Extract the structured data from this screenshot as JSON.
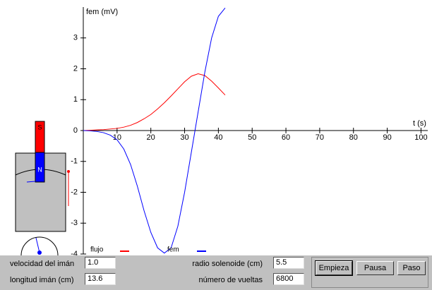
{
  "chart_data": {
    "type": "line",
    "y_label": "fem (mV)",
    "x_label": "t (s)",
    "x": [
      0,
      2,
      4,
      6,
      8,
      10,
      12,
      14,
      16,
      18,
      20,
      22,
      24,
      26,
      28,
      30,
      32,
      34,
      36,
      38,
      40,
      42
    ],
    "series": [
      {
        "name": "flujo",
        "color": "#ff0000",
        "values": [
          0,
          0.01,
          0.02,
          0.03,
          0.05,
          0.07,
          0.11,
          0.17,
          0.26,
          0.38,
          0.52,
          0.7,
          0.9,
          1.12,
          1.35,
          1.58,
          1.76,
          1.84,
          1.78,
          1.6,
          1.38,
          1.15
        ]
      },
      {
        "name": "fem",
        "color": "#0000ff",
        "values": [
          0,
          -0.01,
          -0.03,
          -0.07,
          -0.15,
          -0.3,
          -0.6,
          -1.1,
          -1.8,
          -2.6,
          -3.3,
          -3.8,
          -3.97,
          -3.8,
          -3.1,
          -2.0,
          -0.7,
          0.6,
          1.9,
          3.0,
          3.7,
          3.97
        ]
      }
    ],
    "xlim": [
      0,
      102
    ],
    "ylim": [
      -4,
      4
    ],
    "xticks": [
      10,
      20,
      30,
      40,
      50,
      60,
      70,
      80,
      90,
      100
    ],
    "yticks": [
      -4,
      -3,
      -2,
      -1,
      0,
      1,
      2,
      3
    ]
  },
  "controls": {
    "fields": [
      {
        "label": "velocidad del imán",
        "value": "1.0"
      },
      {
        "label": "longitud imán (cm)",
        "value": "13.6"
      },
      {
        "label": "radio solenoide (cm)",
        "value": "5.5"
      },
      {
        "label": "número de vueltas",
        "value": "6800"
      }
    ],
    "buttons": [
      "Empieza",
      "Pausa",
      "Paso"
    ],
    "magnet": {
      "south": "S",
      "north": "N"
    }
  }
}
